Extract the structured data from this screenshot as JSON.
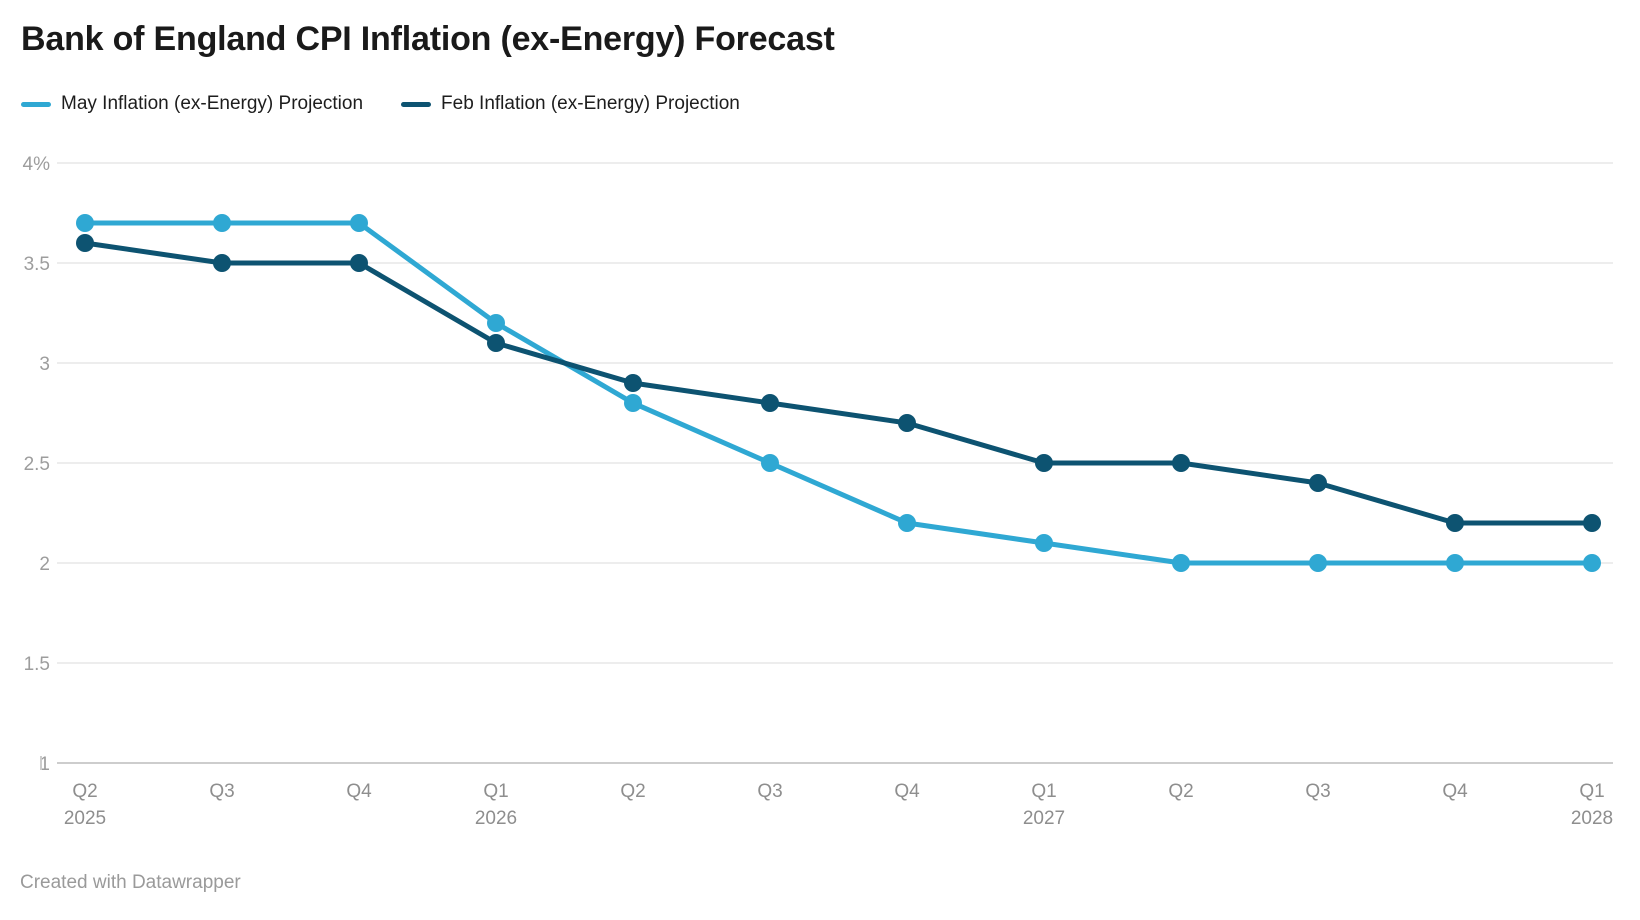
{
  "title": "Bank of England CPI Inflation (ex-Energy) Forecast",
  "footer": "Created with Datawrapper",
  "colors": {
    "may_series": "#2fa8d3",
    "feb_series": "#0d5371",
    "gridline": "#e7e7e7",
    "baseline": "#cdcdcd",
    "y_tick_text": "#9d9d9d",
    "x_tick_text": "#8e8e8e",
    "title_text": "#1a1a1a",
    "legend_text": "#1d1d1d"
  },
  "chart_data": {
    "type": "line",
    "title": "Bank of England CPI Inflation (ex-Energy) Forecast",
    "xlabel": "",
    "ylabel": "",
    "ylim": [
      1,
      4
    ],
    "grid": true,
    "legend_position": "top-left",
    "x_tick_labels": [
      {
        "quarter": "Q2",
        "year": "2025"
      },
      {
        "quarter": "Q3"
      },
      {
        "quarter": "Q4"
      },
      {
        "quarter": "Q1",
        "year": "2026"
      },
      {
        "quarter": "Q2"
      },
      {
        "quarter": "Q3"
      },
      {
        "quarter": "Q4"
      },
      {
        "quarter": "Q1",
        "year": "2027"
      },
      {
        "quarter": "Q2"
      },
      {
        "quarter": "Q3"
      },
      {
        "quarter": "Q4"
      },
      {
        "quarter": "Q1",
        "year": "2028"
      }
    ],
    "categories": [
      "Q2 2025",
      "Q3 2025",
      "Q4 2025",
      "Q1 2026",
      "Q2 2026",
      "Q3 2026",
      "Q4 2026",
      "Q1 2027",
      "Q2 2027",
      "Q3 2027",
      "Q4 2027",
      "Q1 2028"
    ],
    "y_ticks": [
      {
        "value": 4,
        "label": "4%"
      },
      {
        "value": 3.5,
        "label": "3.5"
      },
      {
        "value": 3,
        "label": "3"
      },
      {
        "value": 2.5,
        "label": "2.5"
      },
      {
        "value": 2,
        "label": "2"
      },
      {
        "value": 1.5,
        "label": "1.5"
      },
      {
        "value": 1,
        "label": "1"
      }
    ],
    "series": [
      {
        "name": "May Inflation (ex-Energy) Projection",
        "color": "#2fa8d3",
        "values": [
          3.7,
          3.7,
          3.7,
          3.2,
          2.8,
          2.5,
          2.2,
          2.1,
          2.0,
          2.0,
          2.0,
          2.0
        ]
      },
      {
        "name": "Feb Inflation (ex-Energy) Projection",
        "color": "#0d5371",
        "values": [
          3.6,
          3.5,
          3.5,
          3.1,
          2.9,
          2.8,
          2.7,
          2.5,
          2.5,
          2.4,
          2.2,
          2.2
        ]
      }
    ]
  }
}
